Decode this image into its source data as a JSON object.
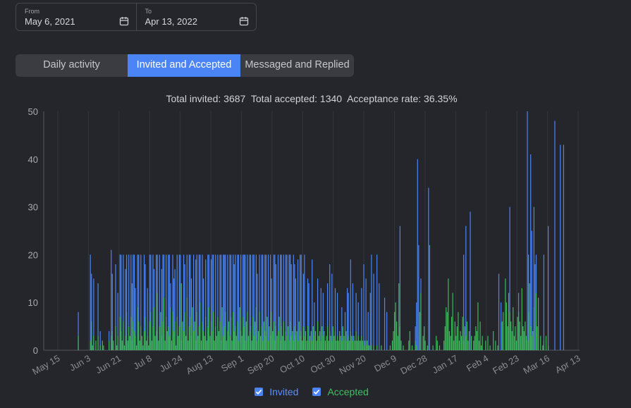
{
  "date_range": {
    "from": {
      "label": "From",
      "value": "May 6, 2021"
    },
    "to": {
      "label": "To",
      "value": "Apr 13, 2022"
    }
  },
  "tabs": [
    {
      "label": "Daily activity",
      "active": false
    },
    {
      "label": "Invited and Accepted",
      "active": true
    },
    {
      "label": "Messaged and Replied",
      "active": false
    }
  ],
  "summary": {
    "invited_label": "Total invited:",
    "invited": "3687",
    "accepted_label": "Total accepted:",
    "accepted": "1340",
    "rate_label": "Acceptance rate:",
    "rate": "36.35%"
  },
  "colors": {
    "invited": "#4b84f5",
    "accepted": "#3cb95a",
    "active_tab": "#4b84f5"
  },
  "icons": {
    "calendar": "calendar-icon",
    "checkbox": "checkbox-checked-icon"
  },
  "legend": [
    {
      "name": "Invited",
      "checked": true
    },
    {
      "name": "Accepted",
      "checked": true
    }
  ],
  "chart_data": {
    "type": "bar",
    "start_date": "2021-05-06",
    "end_date": "2022-04-13",
    "x_tick_labels": [
      "May 15",
      "Jun 3",
      "Jun 21",
      "Jul 8",
      "Jul 24",
      "Aug 13",
      "Sep 1",
      "Sep 20",
      "Oct 10",
      "Oct 30",
      "Nov 20",
      "Dec 9",
      "Dec 28",
      "Jan 17",
      "Feb 4",
      "Feb 23",
      "Mar 16",
      "Apr 13"
    ],
    "ylim": [
      0,
      50
    ],
    "y_ticks": [
      0,
      10,
      20,
      30,
      40,
      50
    ],
    "grid": true,
    "legend_position": "bottom",
    "series": [
      {
        "name": "Invited",
        "values": [
          0,
          0,
          0,
          0,
          0,
          0,
          0,
          0,
          0,
          0,
          0,
          0,
          0,
          0,
          0,
          0,
          0,
          0,
          0,
          0,
          0,
          0,
          0,
          0,
          0,
          0,
          0,
          0,
          0,
          0,
          0,
          8,
          0,
          0,
          0,
          0,
          0,
          0,
          0,
          0,
          0,
          0,
          20,
          16,
          0,
          15,
          0,
          0,
          0,
          14,
          0,
          4,
          0,
          0,
          0,
          0,
          0,
          0,
          0,
          4,
          0,
          21,
          16,
          0,
          0,
          18,
          0,
          12,
          0,
          20,
          20,
          0,
          20,
          0,
          17,
          20,
          0,
          20,
          0,
          20,
          14,
          20,
          20,
          13,
          0,
          20,
          20,
          0,
          20,
          0,
          0,
          20,
          18,
          0,
          13,
          0,
          20,
          20,
          0,
          20,
          17,
          0,
          20,
          20,
          0,
          20,
          0,
          17,
          20,
          20,
          0,
          20,
          0,
          20,
          20,
          14,
          0,
          20,
          15,
          17,
          0,
          20,
          0,
          20,
          20,
          14,
          0,
          20,
          18,
          0,
          20,
          0,
          20,
          20,
          15,
          0,
          20,
          0,
          19,
          20,
          0,
          20,
          20,
          0,
          20,
          15,
          0,
          19,
          0,
          20,
          20,
          0,
          19,
          20,
          20,
          0,
          20,
          0,
          20,
          0,
          20,
          20,
          0,
          20,
          20,
          20,
          0,
          20,
          0,
          20,
          20,
          0,
          20,
          18,
          20,
          0,
          20,
          20,
          0,
          20,
          0,
          20,
          20,
          20,
          0,
          20,
          0,
          20,
          20,
          0,
          20,
          20,
          0,
          20,
          16,
          0,
          20,
          0,
          20,
          20,
          0,
          20,
          20,
          0,
          20,
          0,
          20,
          15,
          0,
          20,
          20,
          18,
          0,
          20,
          0,
          20,
          20,
          0,
          20,
          0,
          20,
          20,
          0,
          20,
          20,
          18,
          0,
          20,
          18,
          15,
          0,
          19,
          0,
          20,
          20,
          0,
          16,
          20,
          0,
          0,
          15,
          14,
          0,
          0,
          19,
          0,
          10,
          0,
          0,
          15,
          0,
          0,
          13,
          0,
          12,
          0,
          0,
          0,
          14,
          0,
          18,
          0,
          16,
          0,
          0,
          13,
          0,
          12,
          0,
          0,
          0,
          9,
          0,
          0,
          8,
          0,
          13,
          12,
          0,
          19,
          0,
          14,
          0,
          0,
          12,
          0,
          10,
          0,
          0,
          13,
          0,
          18,
          0,
          15,
          0,
          8,
          0,
          12,
          20,
          0,
          16,
          0,
          0,
          20,
          0,
          14,
          0,
          0,
          0,
          0,
          11,
          0,
          8,
          0,
          0,
          0,
          0,
          0,
          0,
          0,
          0,
          0,
          0,
          0,
          26,
          0,
          0,
          0,
          0,
          0,
          0,
          0,
          0,
          0,
          0,
          0,
          0,
          0,
          5,
          10,
          40,
          22,
          0,
          15,
          0,
          0,
          0,
          0,
          0,
          0,
          34,
          22,
          0,
          0,
          0,
          0,
          0,
          0,
          0,
          0,
          0,
          0,
          0,
          0,
          0,
          0,
          0,
          0,
          0,
          0,
          0,
          0,
          0,
          0,
          0,
          0,
          0,
          0,
          0,
          0,
          0,
          0,
          20,
          0,
          26,
          0,
          0,
          0,
          29,
          0,
          0,
          0,
          0,
          0,
          0,
          0,
          0,
          0,
          0,
          0,
          0,
          0,
          0,
          0,
          0,
          0,
          0,
          0,
          0,
          0,
          0,
          0,
          0,
          0,
          16,
          0,
          10,
          0,
          0,
          0,
          0,
          0,
          0,
          0,
          30,
          0,
          0,
          0,
          0,
          0,
          0,
          0,
          12,
          0,
          0,
          0,
          5,
          0,
          0,
          0,
          50,
          20,
          0,
          41,
          25,
          0,
          30,
          18,
          20,
          0,
          0,
          0,
          0,
          0,
          0,
          20,
          0,
          0,
          0,
          26,
          0,
          0,
          0,
          0,
          0,
          48,
          0,
          0,
          0,
          0,
          43,
          0,
          0,
          43,
          0,
          0,
          0,
          0,
          0,
          0,
          0,
          0,
          0,
          0,
          0,
          0,
          0,
          0
        ]
      },
      {
        "name": "Accepted",
        "values": [
          0,
          0,
          0,
          0,
          0,
          0,
          0,
          0,
          0,
          0,
          0,
          0,
          0,
          0,
          0,
          0,
          0,
          0,
          0,
          0,
          0,
          0,
          0,
          0,
          0,
          0,
          0,
          0,
          0,
          0,
          0,
          3,
          0,
          0,
          0,
          0,
          0,
          0,
          0,
          0,
          0,
          0,
          2,
          6,
          1,
          3,
          0,
          2,
          0,
          3,
          0,
          1,
          0,
          2,
          1,
          0,
          0,
          0,
          0,
          2,
          0,
          3,
          4,
          2,
          0,
          5,
          1,
          3,
          0,
          7,
          4,
          2,
          6,
          1,
          3,
          8,
          2,
          5,
          3,
          7,
          2,
          6,
          4,
          3,
          1,
          9,
          6,
          2,
          5,
          3,
          1,
          4,
          7,
          2,
          3,
          1,
          6,
          8,
          2,
          5,
          9,
          3,
          4,
          12,
          2,
          5,
          8,
          3,
          6,
          11,
          2,
          7,
          4,
          5,
          3,
          9,
          2,
          8,
          4,
          6,
          1,
          7,
          3,
          5,
          14,
          2,
          6,
          4,
          8,
          3,
          11,
          2,
          5,
          7,
          3,
          9,
          4,
          6,
          2,
          8,
          3,
          5,
          10,
          2,
          6,
          4,
          3,
          7,
          2,
          5,
          9,
          3,
          6,
          4,
          8,
          2,
          5,
          3,
          7,
          4,
          6,
          2,
          9,
          3,
          5,
          8,
          2,
          4,
          6,
          3,
          7,
          2,
          8,
          4,
          5,
          3,
          6,
          2,
          9,
          4,
          3,
          7,
          5,
          2,
          6,
          8,
          3,
          4,
          5,
          2,
          7,
          3,
          6,
          9,
          2,
          4,
          8,
          3,
          5,
          2,
          6,
          4,
          3,
          7,
          2,
          5,
          3,
          8,
          4,
          6,
          2,
          5,
          3,
          4,
          7,
          2,
          5,
          3,
          6,
          2,
          4,
          3,
          5,
          2,
          6,
          3,
          4,
          2,
          5,
          3,
          4,
          2,
          6,
          3,
          4,
          2,
          5,
          3,
          4,
          2,
          5,
          2,
          3,
          4,
          2,
          5,
          3,
          4,
          2,
          6,
          3,
          4,
          2,
          5,
          3,
          4,
          2,
          3,
          5,
          2,
          4,
          3,
          2,
          5,
          3,
          4,
          2,
          3,
          2,
          4,
          3,
          2,
          5,
          3,
          2,
          4,
          2,
          3,
          2,
          4,
          3,
          2,
          3,
          2,
          4,
          2,
          3,
          2,
          2,
          3,
          2,
          1,
          2,
          1,
          2,
          1,
          1,
          0,
          1,
          0,
          1,
          0,
          0,
          1,
          0,
          0,
          0,
          1,
          0,
          0,
          0,
          0,
          0,
          0,
          0,
          1,
          0,
          2,
          4,
          8,
          10,
          6,
          3,
          14,
          5,
          2,
          0,
          1,
          0,
          0,
          0,
          0,
          2,
          4,
          0,
          1,
          0,
          0,
          2,
          1,
          0,
          0,
          8,
          12,
          0,
          3,
          5,
          2,
          0,
          1,
          0,
          0,
          0,
          0,
          1,
          0,
          0,
          3,
          2,
          0,
          1,
          0,
          0,
          0,
          2,
          5,
          9,
          8,
          15,
          4,
          3,
          7,
          12,
          2,
          6,
          3,
          5,
          8,
          2,
          4,
          3,
          7,
          2,
          5,
          3,
          6,
          2,
          4,
          0,
          3,
          0,
          2,
          3,
          5,
          4,
          10,
          2,
          6,
          1,
          3,
          0,
          0,
          2,
          0,
          3,
          0,
          1,
          0,
          0,
          4,
          0,
          2,
          0,
          1,
          0,
          0,
          0,
          6,
          8,
          0,
          15,
          10,
          5,
          12,
          8,
          6,
          4,
          9,
          3,
          5,
          2,
          7,
          8,
          6,
          3,
          13,
          5,
          4,
          6,
          3,
          2,
          8,
          14,
          5,
          3,
          4,
          9,
          0,
          12,
          5,
          11,
          0,
          3,
          0,
          1,
          2,
          0,
          3,
          0,
          1,
          0,
          0,
          0,
          0
        ]
      }
    ]
  }
}
